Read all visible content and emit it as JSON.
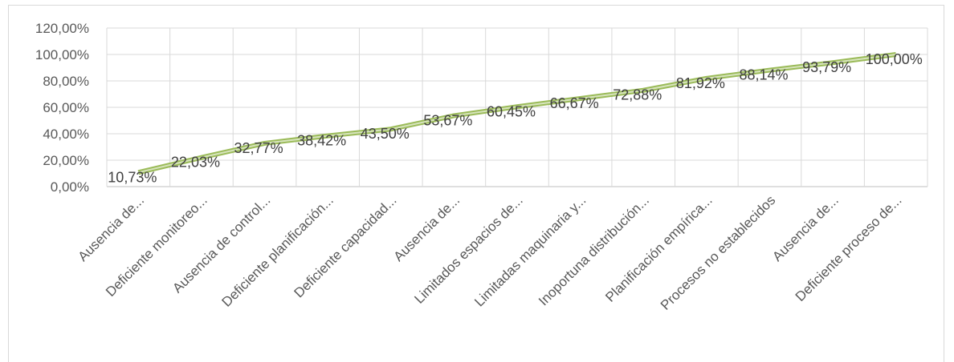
{
  "chart_data": {
    "type": "line",
    "title": "",
    "xlabel": "",
    "ylabel": "",
    "categories": [
      "Ausencia de...",
      "Deficiente monitoreo...",
      "Ausencia de control...",
      "Deficiente planificación...",
      "Deficiente capacidad...",
      "Ausencia de...",
      "Limitados espacios de...",
      "Limitadas maquinaria y...",
      "Inoportuna distribución...",
      "Planificación empírica...",
      "Procesos no establecidos",
      "Ausencia de...",
      "Deficiente proceso de..."
    ],
    "series": [
      {
        "values": [
          10.73,
          22.03,
          32.77,
          38.42,
          43.5,
          53.67,
          60.45,
          66.67,
          72.88,
          81.92,
          88.14,
          93.79,
          100.0
        ],
        "data_labels": [
          "10,73%",
          "22,03%",
          "32,77%",
          "38,42%",
          "43,50%",
          "53,67%",
          "60,45%",
          "66,67%",
          "72,88%",
          "81,92%",
          "88,14%",
          "93,79%",
          "100,00%"
        ]
      }
    ],
    "ylim": [
      0,
      120
    ],
    "y_ticks": [
      0,
      20,
      40,
      60,
      80,
      100,
      120
    ],
    "y_tick_labels": [
      "0,00%",
      "20,00%",
      "40,00%",
      "60,00%",
      "80,00%",
      "100,00%",
      "120,00%"
    ],
    "grid": true,
    "legend": "none",
    "colors": {
      "line": "#9bbb59",
      "line_highlight": "#d7e4bd",
      "grid": "#d9d9d9",
      "axis": "#bfbfbf",
      "text": "#595959"
    }
  }
}
